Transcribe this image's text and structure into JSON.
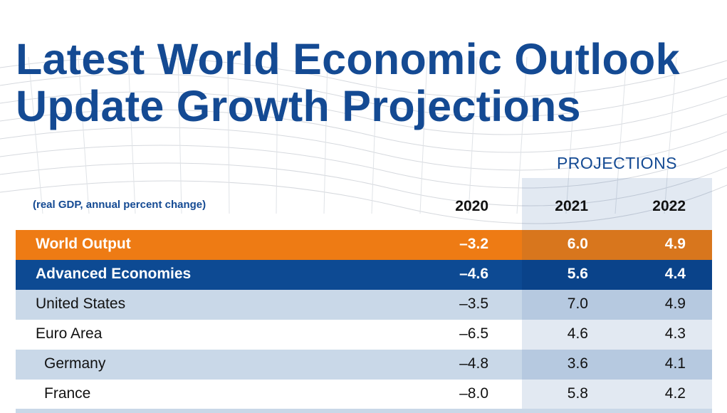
{
  "title": {
    "line1": "Latest World Economic Outlook",
    "line2": "Update Growth Projections"
  },
  "projections_label": "PROJECTIONS",
  "subtitle": "(real GDP, annual percent change)",
  "columns": [
    "2020",
    "2021",
    "2022"
  ],
  "rows": [
    {
      "label": "World Output",
      "values": [
        "–3.2",
        "6.0",
        "4.9"
      ]
    },
    {
      "label": "Advanced Economies",
      "values": [
        "–4.6",
        "5.6",
        "4.4"
      ]
    },
    {
      "label": "United States",
      "values": [
        "–3.5",
        "7.0",
        "4.9"
      ]
    },
    {
      "label": "Euro Area",
      "values": [
        "–6.5",
        "4.6",
        "4.3"
      ]
    },
    {
      "label": "Germany",
      "values": [
        "–4.8",
        "3.6",
        "4.1"
      ]
    },
    {
      "label": "France",
      "values": [
        "–8.0",
        "5.8",
        "4.2"
      ]
    }
  ],
  "colors": {
    "title": "#144a93",
    "world_output_row": "#ee7b14",
    "advanced_economies_row": "#0d4a93",
    "light_row": "#c9d8e8"
  },
  "chart_data": {
    "type": "table",
    "title": "Latest World Economic Outlook Update Growth Projections",
    "subtitle": "(real GDP, annual percent change)",
    "column_group": "PROJECTIONS",
    "columns": [
      "2020",
      "2021",
      "2022"
    ],
    "rows": [
      {
        "label": "World Output",
        "values": [
          -3.2,
          6.0,
          4.9
        ]
      },
      {
        "label": "Advanced Economies",
        "values": [
          -4.6,
          5.6,
          4.4
        ]
      },
      {
        "label": "United States",
        "values": [
          -3.5,
          7.0,
          4.9
        ]
      },
      {
        "label": "Euro Area",
        "values": [
          -6.5,
          4.6,
          4.3
        ]
      },
      {
        "label": "Germany",
        "values": [
          -4.8,
          3.6,
          4.1
        ]
      },
      {
        "label": "France",
        "values": [
          -8.0,
          5.8,
          4.2
        ]
      }
    ]
  }
}
